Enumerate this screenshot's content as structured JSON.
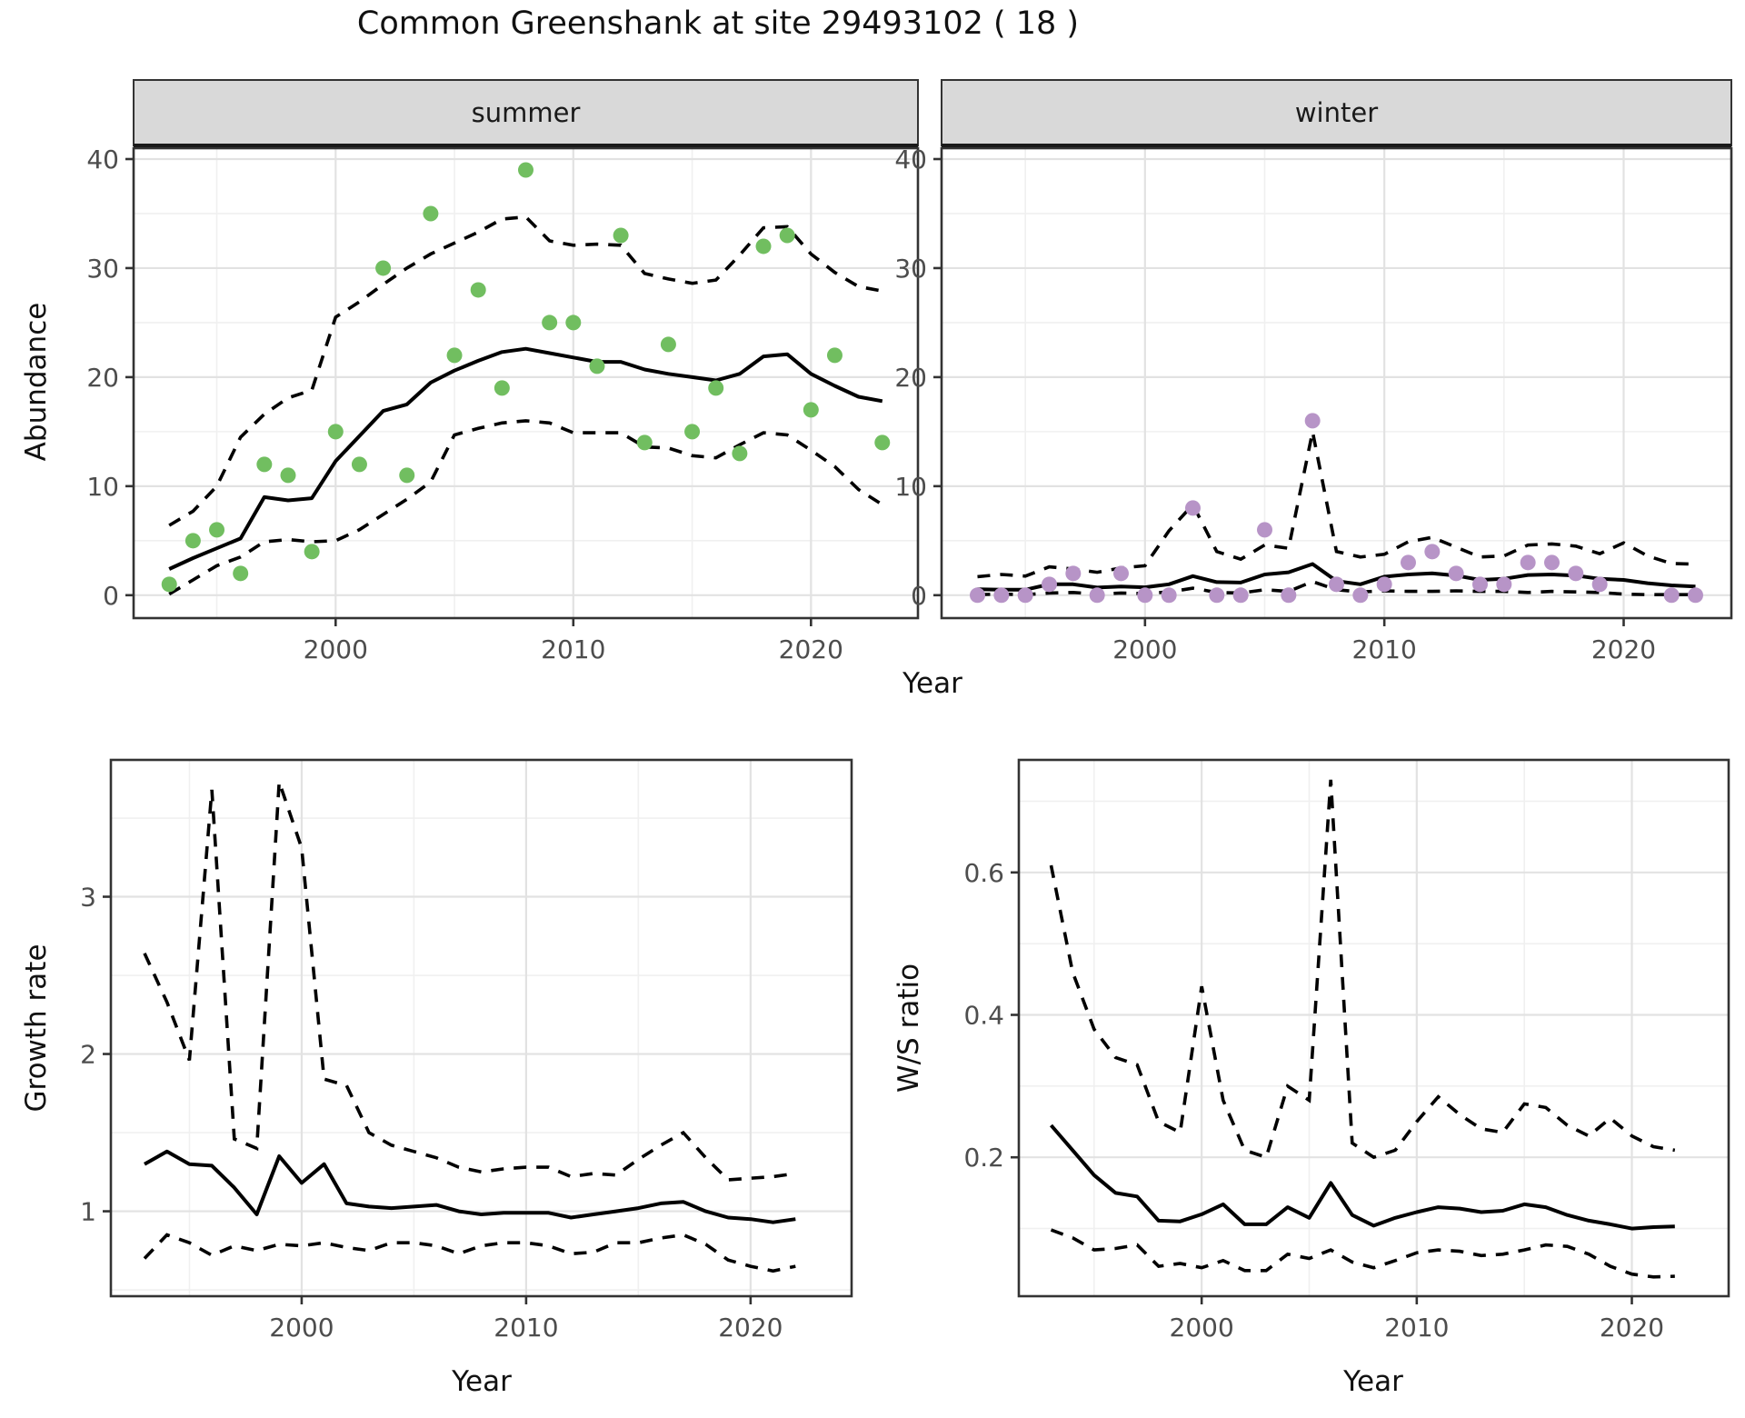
{
  "labels": {
    "title": "Common Greenshank at site 29493102 ( 18 )",
    "y_axis_top": "Abundance",
    "x_axis_top": "Year",
    "y_axis_bottom_left": "Growth rate",
    "x_axis_bottom_left": "Year",
    "y_axis_bottom_right": "W/S ratio",
    "x_axis_bottom_right": "Year",
    "facet_summer": "summer",
    "facet_winter": "winter"
  },
  "colors": {
    "summer_point": "#71BE60",
    "winter_point": "#B794C7",
    "line": "#000000",
    "grid_major": "#E2E2E2",
    "grid_minor": "#F0F0F0",
    "panel_border": "#333333",
    "strip_fill": "#D9D9D9",
    "strip_border": "#333333",
    "tick_label": "#4D4D4D",
    "background": "#FFFFFF"
  },
  "chart_data": [
    {
      "id": "abundance-summer",
      "type": "scatter",
      "facet": "summer",
      "ylabel": "Abundance",
      "xlabel": "Year",
      "xlim": [
        1991.5,
        2024.5
      ],
      "ylim": [
        -2.1,
        41.0
      ],
      "x_ticks": {
        "values": [
          2000,
          2010,
          2020
        ],
        "labels": [
          "2000",
          "2010",
          "2020"
        ]
      },
      "x_minor": [
        1995,
        2005,
        2015
      ],
      "y_ticks": {
        "values": [
          0,
          10,
          20,
          30,
          40
        ],
        "labels": [
          "0",
          "10",
          "20",
          "30",
          "40"
        ]
      },
      "y_minor": [
        5,
        15,
        25,
        35
      ],
      "grid": true,
      "years": [
        1993,
        1994,
        1995,
        1996,
        1997,
        1998,
        1999,
        2000,
        2001,
        2002,
        2003,
        2004,
        2005,
        2006,
        2007,
        2008,
        2009,
        2010,
        2011,
        2012,
        2013,
        2014,
        2015,
        2016,
        2017,
        2018,
        2019,
        2020,
        2021,
        2022,
        2023
      ],
      "fit": [
        2.4,
        3.4,
        4.3,
        5.2,
        9.0,
        8.7,
        8.9,
        12.3,
        14.6,
        16.9,
        17.5,
        19.5,
        20.6,
        21.5,
        22.3,
        22.6,
        22.2,
        21.8,
        21.4,
        21.4,
        20.7,
        20.3,
        20.0,
        19.7,
        20.3,
        21.9,
        22.1,
        20.3,
        19.2,
        18.2,
        17.8
      ],
      "upper": [
        6.4,
        7.7,
        10.0,
        14.5,
        16.6,
        18.1,
        18.8,
        25.5,
        26.9,
        28.5,
        30.0,
        31.3,
        32.3,
        33.3,
        34.5,
        34.7,
        32.5,
        32.1,
        32.2,
        32.1,
        29.5,
        29.0,
        28.6,
        28.9,
        31.2,
        33.7,
        33.8,
        31.3,
        29.6,
        28.3,
        27.9
      ],
      "lower": [
        0.1,
        1.4,
        2.7,
        3.5,
        4.9,
        5.1,
        4.9,
        5.0,
        6.0,
        7.4,
        8.8,
        10.4,
        14.7,
        15.3,
        15.8,
        16.0,
        15.8,
        14.9,
        14.9,
        14.9,
        13.6,
        13.5,
        12.8,
        12.6,
        13.8,
        14.9,
        14.7,
        13.3,
        11.8,
        9.7,
        8.3
      ],
      "obs_years": [
        1993,
        1994,
        1995,
        1996,
        1997,
        1998,
        1999,
        2000,
        2001,
        2002,
        2003,
        2004,
        2005,
        2006,
        2007,
        2008,
        2009,
        2010,
        2011,
        2012,
        2013,
        2014,
        2015,
        2016,
        2017,
        2018,
        2019,
        2020,
        2021,
        2023
      ],
      "obs_values": [
        1,
        5,
        6,
        2,
        12,
        11,
        4,
        15,
        12,
        30,
        11,
        35,
        22,
        28,
        19,
        39,
        25,
        25,
        21,
        33,
        14,
        23,
        15,
        19,
        13,
        32,
        33,
        17,
        22,
        14
      ],
      "point_color": "#71BE60"
    },
    {
      "id": "abundance-winter",
      "type": "scatter",
      "facet": "winter",
      "ylabel": "Abundance",
      "xlabel": "Year",
      "xlim": [
        1991.5,
        2024.5
      ],
      "ylim": [
        -2.1,
        41.0
      ],
      "x_ticks": {
        "values": [
          2000,
          2010,
          2020
        ],
        "labels": [
          "2000",
          "2010",
          "2020"
        ]
      },
      "x_minor": [
        1995,
        2005,
        2015
      ],
      "y_ticks": {
        "values": [
          0,
          10,
          20,
          30,
          40
        ],
        "labels": [
          "0",
          "10",
          "20",
          "30",
          "40"
        ]
      },
      "y_minor": [
        5,
        15,
        25,
        35
      ],
      "grid": true,
      "years": [
        1993,
        1994,
        1995,
        1996,
        1997,
        1998,
        1999,
        2000,
        2001,
        2002,
        2003,
        2004,
        2005,
        2006,
        2007,
        2008,
        2009,
        2010,
        2011,
        2012,
        2013,
        2014,
        2015,
        2016,
        2017,
        2018,
        2019,
        2020,
        2021,
        2022,
        2023
      ],
      "fit": [
        0.55,
        0.5,
        0.5,
        1.0,
        1.0,
        0.7,
        0.8,
        0.73,
        1.0,
        1.75,
        1.2,
        1.16,
        1.9,
        2.1,
        2.86,
        1.3,
        1.0,
        1.7,
        1.9,
        2.0,
        1.8,
        1.4,
        1.5,
        1.85,
        1.9,
        1.8,
        1.5,
        1.4,
        1.1,
        0.9,
        0.8
      ],
      "upper": [
        1.7,
        1.9,
        1.75,
        2.6,
        2.4,
        2.1,
        2.5,
        2.7,
        5.9,
        8.3,
        4.0,
        3.3,
        4.6,
        4.3,
        15.0,
        4.0,
        3.5,
        3.75,
        4.9,
        5.3,
        4.4,
        3.5,
        3.6,
        4.6,
        4.7,
        4.5,
        3.8,
        4.8,
        3.6,
        2.9,
        2.85
      ],
      "lower": [
        0.05,
        0.1,
        0.05,
        0.2,
        0.25,
        0.1,
        0.2,
        0.15,
        0.3,
        0.64,
        0.25,
        0.2,
        0.5,
        0.35,
        1.25,
        0.5,
        0.3,
        0.4,
        0.35,
        0.35,
        0.4,
        0.35,
        0.35,
        0.25,
        0.35,
        0.3,
        0.25,
        0.1,
        0.05,
        0.05,
        0.05
      ],
      "obs_years": [
        1993,
        1994,
        1995,
        1996,
        1997,
        1998,
        1999,
        2000,
        2001,
        2002,
        2003,
        2004,
        2005,
        2006,
        2007,
        2008,
        2009,
        2010,
        2011,
        2012,
        2013,
        2014,
        2015,
        2016,
        2017,
        2018,
        2019,
        2022,
        2023
      ],
      "obs_values": [
        0,
        0,
        0,
        1,
        2,
        0,
        2,
        0,
        0,
        8,
        0,
        0,
        6,
        0,
        16,
        1,
        0,
        1,
        3,
        4,
        2,
        1,
        1,
        3,
        3,
        2,
        1,
        0,
        0
      ],
      "point_color": "#B794C7"
    },
    {
      "id": "growth-rate",
      "type": "line",
      "facet": null,
      "ylabel": "Growth rate",
      "xlabel": "Year",
      "xlim": [
        1991.5,
        2024.5
      ],
      "ylim": [
        0.46,
        3.87
      ],
      "x_ticks": {
        "values": [
          2000,
          2010,
          2020
        ],
        "labels": [
          "2000",
          "2010",
          "2020"
        ]
      },
      "x_minor": [
        1995,
        2005,
        2015
      ],
      "y_ticks": {
        "values": [
          1,
          2,
          3
        ],
        "labels": [
          "1",
          "2",
          "3"
        ]
      },
      "y_minor": [
        0.5,
        1.5,
        2.5,
        3.5
      ],
      "grid": true,
      "years": [
        1993,
        1994,
        1995,
        1996,
        1997,
        1998,
        1999,
        2000,
        2001,
        2002,
        2003,
        2004,
        2005,
        2006,
        2007,
        2008,
        2009,
        2010,
        2011,
        2012,
        2013,
        2014,
        2015,
        2016,
        2017,
        2018,
        2019,
        2020,
        2021,
        2022
      ],
      "fit": [
        1.3,
        1.38,
        1.3,
        1.29,
        1.15,
        0.98,
        1.35,
        1.18,
        1.3,
        1.05,
        1.03,
        1.02,
        1.03,
        1.04,
        1.0,
        0.98,
        0.99,
        0.99,
        0.99,
        0.96,
        0.98,
        1.0,
        1.02,
        1.05,
        1.06,
        1.0,
        0.96,
        0.95,
        0.93,
        0.95
      ],
      "upper": [
        2.64,
        2.33,
        1.96,
        3.68,
        1.46,
        1.4,
        3.73,
        3.31,
        1.84,
        1.8,
        1.5,
        1.42,
        1.38,
        1.34,
        1.28,
        1.25,
        1.27,
        1.28,
        1.28,
        1.22,
        1.24,
        1.23,
        1.33,
        1.42,
        1.5,
        1.34,
        1.2,
        1.21,
        1.22,
        1.24
      ],
      "lower": [
        0.7,
        0.85,
        0.8,
        0.72,
        0.78,
        0.75,
        0.79,
        0.78,
        0.8,
        0.77,
        0.75,
        0.8,
        0.8,
        0.78,
        0.73,
        0.78,
        0.8,
        0.8,
        0.78,
        0.73,
        0.74,
        0.8,
        0.8,
        0.83,
        0.85,
        0.79,
        0.69,
        0.65,
        0.62,
        0.65
      ],
      "obs_years": [],
      "obs_values": [],
      "point_color": null
    },
    {
      "id": "ws-ratio",
      "type": "line",
      "facet": null,
      "ylabel": "W/S ratio",
      "xlabel": "Year",
      "xlim": [
        1991.5,
        2024.5
      ],
      "ylim": [
        0.005,
        0.758
      ],
      "x_ticks": {
        "values": [
          2000,
          2010,
          2020
        ],
        "labels": [
          "2000",
          "2010",
          "2020"
        ]
      },
      "x_minor": [
        1995,
        2005,
        2015
      ],
      "y_ticks": {
        "values": [
          0.2,
          0.4,
          0.6
        ],
        "labels": [
          "0.2",
          "0.4",
          "0.6"
        ]
      },
      "y_minor": [
        0.1,
        0.3,
        0.5,
        0.7
      ],
      "grid": true,
      "years": [
        1993,
        1994,
        1995,
        1996,
        1997,
        1998,
        1999,
        2000,
        2001,
        2002,
        2003,
        2004,
        2005,
        2006,
        2007,
        2008,
        2009,
        2010,
        2011,
        2012,
        2013,
        2014,
        2015,
        2016,
        2017,
        2018,
        2019,
        2020,
        2021,
        2022
      ],
      "fit": [
        0.245,
        0.21,
        0.175,
        0.15,
        0.145,
        0.111,
        0.11,
        0.12,
        0.134,
        0.106,
        0.106,
        0.13,
        0.115,
        0.164,
        0.119,
        0.104,
        0.115,
        0.123,
        0.13,
        0.128,
        0.123,
        0.125,
        0.134,
        0.13,
        0.119,
        0.111,
        0.106,
        0.1,
        0.102,
        0.103
      ],
      "upper": [
        0.61,
        0.46,
        0.38,
        0.34,
        0.33,
        0.25,
        0.235,
        0.44,
        0.28,
        0.21,
        0.2,
        0.3,
        0.28,
        0.73,
        0.22,
        0.2,
        0.21,
        0.25,
        0.285,
        0.26,
        0.24,
        0.235,
        0.275,
        0.27,
        0.245,
        0.23,
        0.255,
        0.23,
        0.215,
        0.21
      ],
      "lower": [
        0.098,
        0.087,
        0.07,
        0.072,
        0.077,
        0.047,
        0.051,
        0.045,
        0.055,
        0.041,
        0.041,
        0.064,
        0.058,
        0.07,
        0.053,
        0.045,
        0.055,
        0.066,
        0.07,
        0.068,
        0.062,
        0.064,
        0.07,
        0.077,
        0.075,
        0.064,
        0.047,
        0.036,
        0.032,
        0.033
      ]
    }
  ]
}
